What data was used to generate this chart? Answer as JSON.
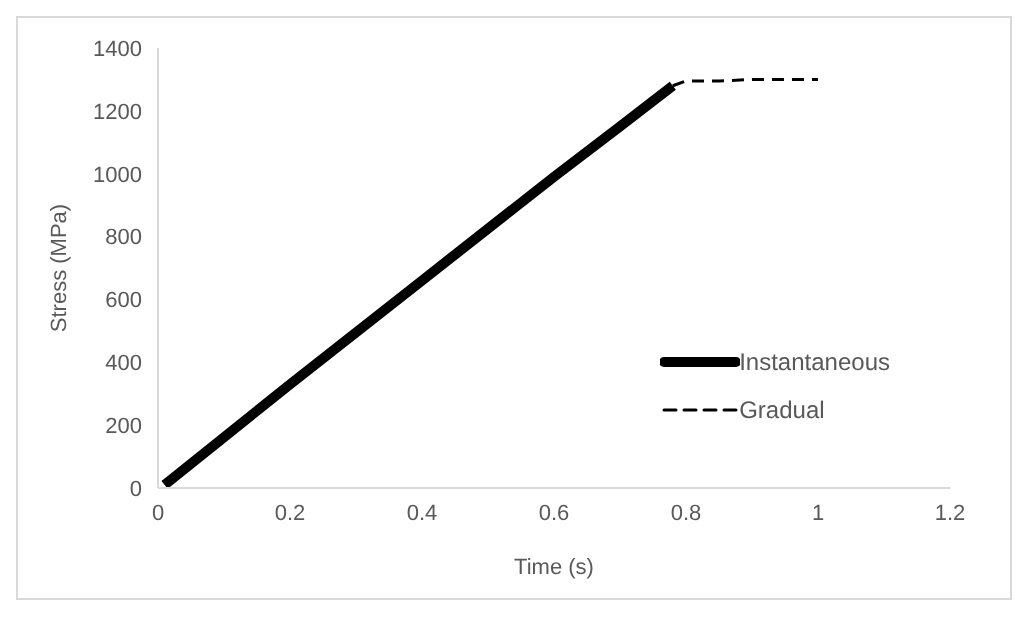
{
  "chart_data": {
    "type": "line",
    "xlabel": "Time (s)",
    "ylabel": "Stress (MPa)",
    "xlim": [
      0,
      1.2
    ],
    "xticks": [
      0,
      0.2,
      0.4,
      0.6,
      0.8,
      1,
      1.2
    ],
    "ylim": [
      0,
      1400
    ],
    "yticks": [
      0,
      200,
      400,
      600,
      800,
      1000,
      1200,
      1400
    ],
    "grid": false,
    "legend": "right",
    "marker": "none",
    "series": [
      {
        "name": "Instantaneous",
        "color": "#000000",
        "line_style": "solid",
        "x": [
          0.01,
          0.2,
          0.4,
          0.6,
          0.7,
          0.78
        ],
        "values": [
          10,
          330,
          660,
          990,
          1150,
          1280
        ]
      },
      {
        "name": "Gradual",
        "color": "#000000",
        "line_style": "dashed",
        "x": [
          0.78,
          0.8,
          0.85,
          0.9,
          1
        ],
        "values": [
          1280,
          1295,
          1295,
          1300,
          1300
        ]
      }
    ]
  }
}
